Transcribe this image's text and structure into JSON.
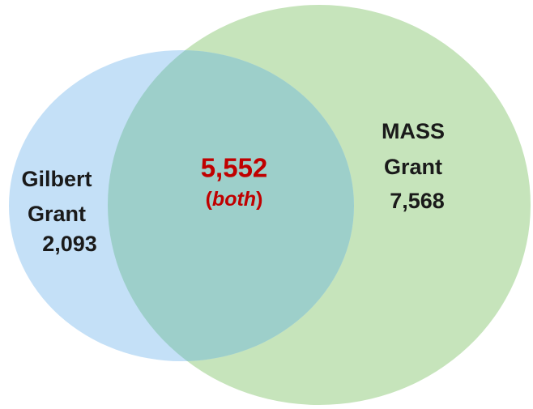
{
  "sets": [
    {
      "name": [
        "Gilbert",
        "Grant"
      ],
      "count": "2,093"
    },
    {
      "name": [
        "MASS",
        "Grant"
      ],
      "count": "7,568"
    }
  ],
  "intersection": {
    "count": "5,552",
    "label": [
      "(",
      "both",
      ")"
    ]
  }
}
